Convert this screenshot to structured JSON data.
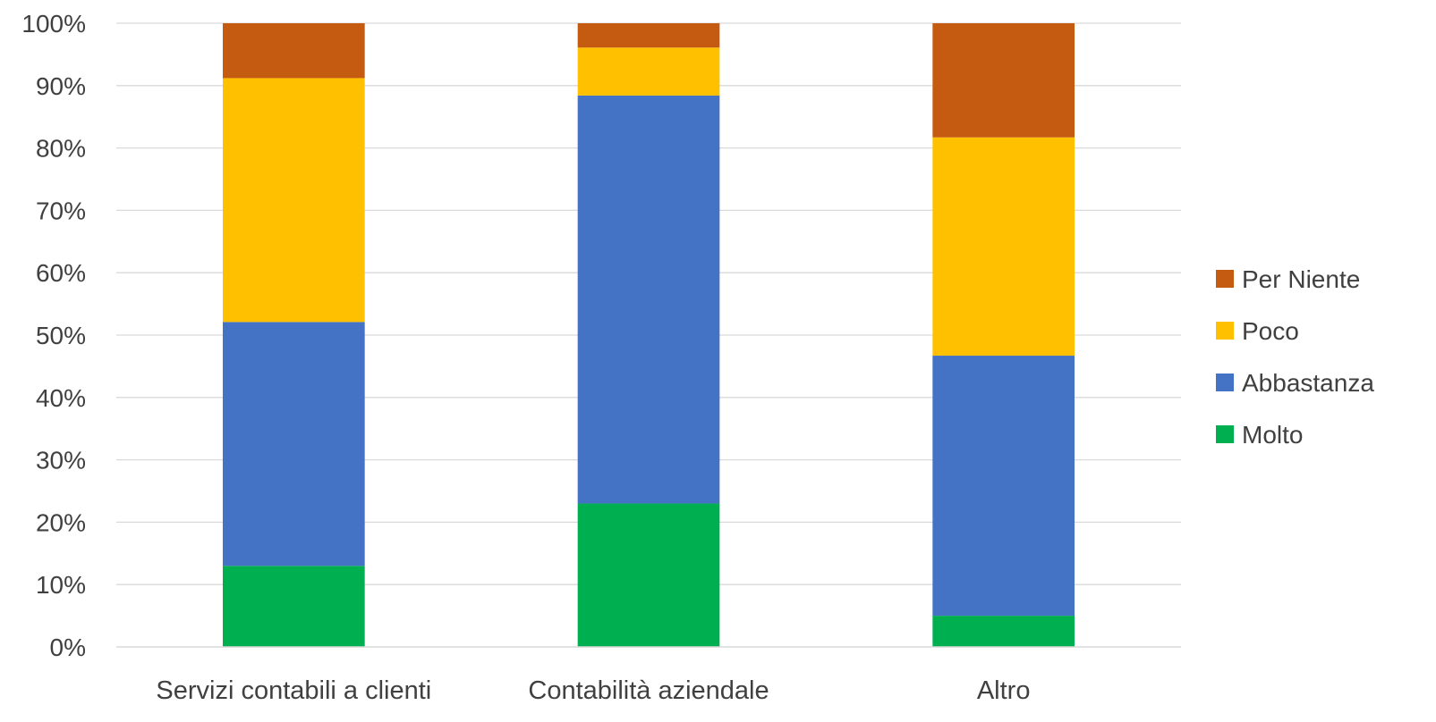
{
  "chart_data": {
    "type": "bar",
    "stacked": "percent",
    "categories": [
      "Servizi contabili a clienti",
      "Contabilità aziendale",
      "Altro"
    ],
    "series": [
      {
        "name": "Molto",
        "values": [
          13.0,
          23.0,
          5.0
        ],
        "color": "#00B050"
      },
      {
        "name": "Abbastanza",
        "values": [
          39.1,
          65.4,
          41.7
        ],
        "color": "#4472C4"
      },
      {
        "name": "Poco",
        "values": [
          39.1,
          7.7,
          35.0
        ],
        "color": "#FFC000"
      },
      {
        "name": "Per Niente",
        "values": [
          8.8,
          3.9,
          18.3
        ],
        "color": "#C55A11"
      }
    ],
    "legend_order": [
      "Per Niente",
      "Poco",
      "Abbastanza",
      "Molto"
    ],
    "ylim": [
      0,
      100
    ],
    "yticks": [
      "0%",
      "10%",
      "20%",
      "30%",
      "40%",
      "50%",
      "60%",
      "70%",
      "80%",
      "90%",
      "100%"
    ],
    "grid": true,
    "legend_position": "right",
    "title": "",
    "xlabel": "",
    "ylabel": ""
  }
}
